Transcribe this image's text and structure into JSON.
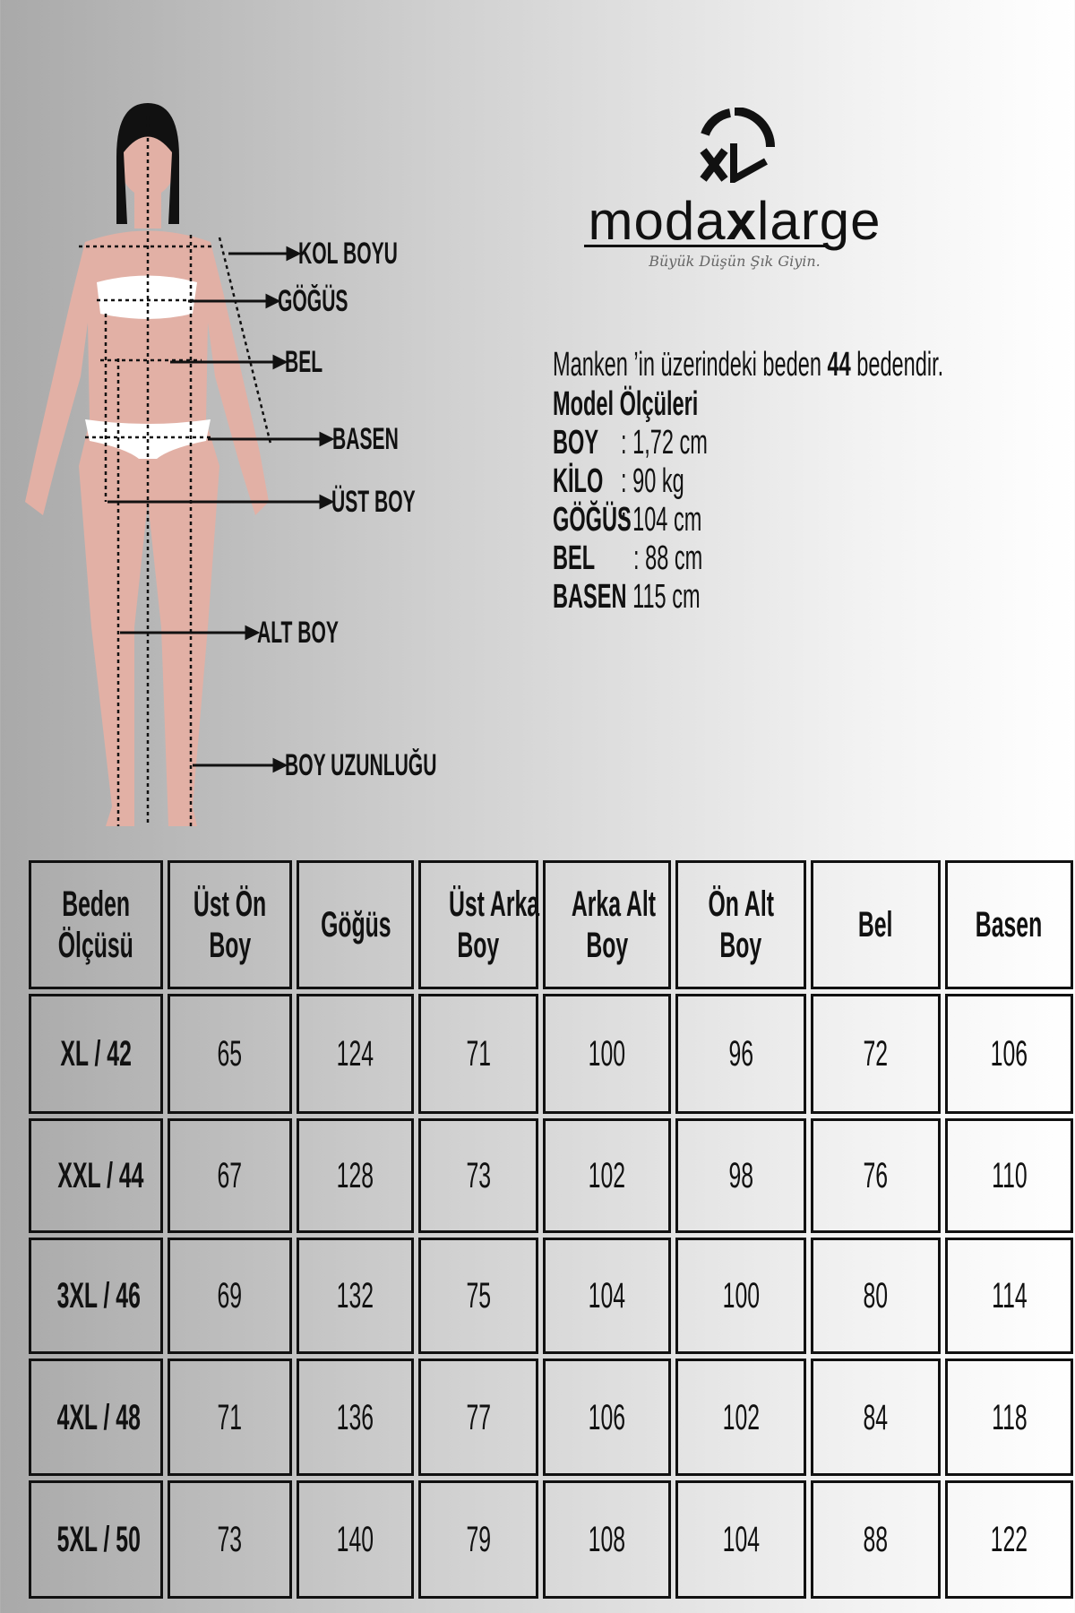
{
  "figure": {
    "labels": [
      "KOL BOYU",
      "GÖĞÜS",
      "BEL",
      "BASEN",
      "ÜST BOY",
      "ALT BOY",
      "BOY UZUNLUĞU"
    ],
    "skin_color": "#e2b0a5"
  },
  "logo": {
    "brand": "modaxlarge",
    "brand_pre": "moda",
    "brand_x": "x",
    "brand_post": "large",
    "tagline": "Büyük Düşün Şık Giyin.",
    "mark": "MXL"
  },
  "model": {
    "intro_pre": "Manken ’in üzerindeki beden ",
    "intro_size": "44",
    "intro_post": " bedendir.",
    "title": "Model Ölçüleri",
    "rows": [
      {
        "k": "BOY",
        "v": ": 1,72 cm"
      },
      {
        "k": "KİLO",
        "v": ": 90 kg"
      },
      {
        "k": "GÖĞÜS",
        "v": ": 104 cm"
      },
      {
        "k": "BEL",
        "v": ": 88 cm"
      },
      {
        "k": "BASEN",
        "v": ": 115 cm"
      }
    ]
  },
  "table": {
    "headers": [
      [
        "Beden",
        "Ölçüsü"
      ],
      [
        "Üst Ön",
        "Boy"
      ],
      [
        "Göğüs"
      ],
      [
        "Üst Arka",
        "Boy"
      ],
      [
        "Arka Alt",
        "Boy"
      ],
      [
        "Ön Alt",
        "Boy"
      ],
      [
        "Bel"
      ],
      [
        "Basen"
      ]
    ],
    "rows": [
      [
        "XL / 42",
        "65",
        "124",
        "71",
        "100",
        "96",
        "72",
        "106"
      ],
      [
        "XXL / 44",
        "67",
        "128",
        "73",
        "102",
        "98",
        "76",
        "110"
      ],
      [
        "3XL / 46",
        "69",
        "132",
        "75",
        "104",
        "100",
        "80",
        "114"
      ],
      [
        "4XL / 48",
        "71",
        "136",
        "77",
        "106",
        "102",
        "84",
        "118"
      ],
      [
        "5XL / 50",
        "73",
        "140",
        "79",
        "108",
        "104",
        "88",
        "122"
      ]
    ]
  }
}
